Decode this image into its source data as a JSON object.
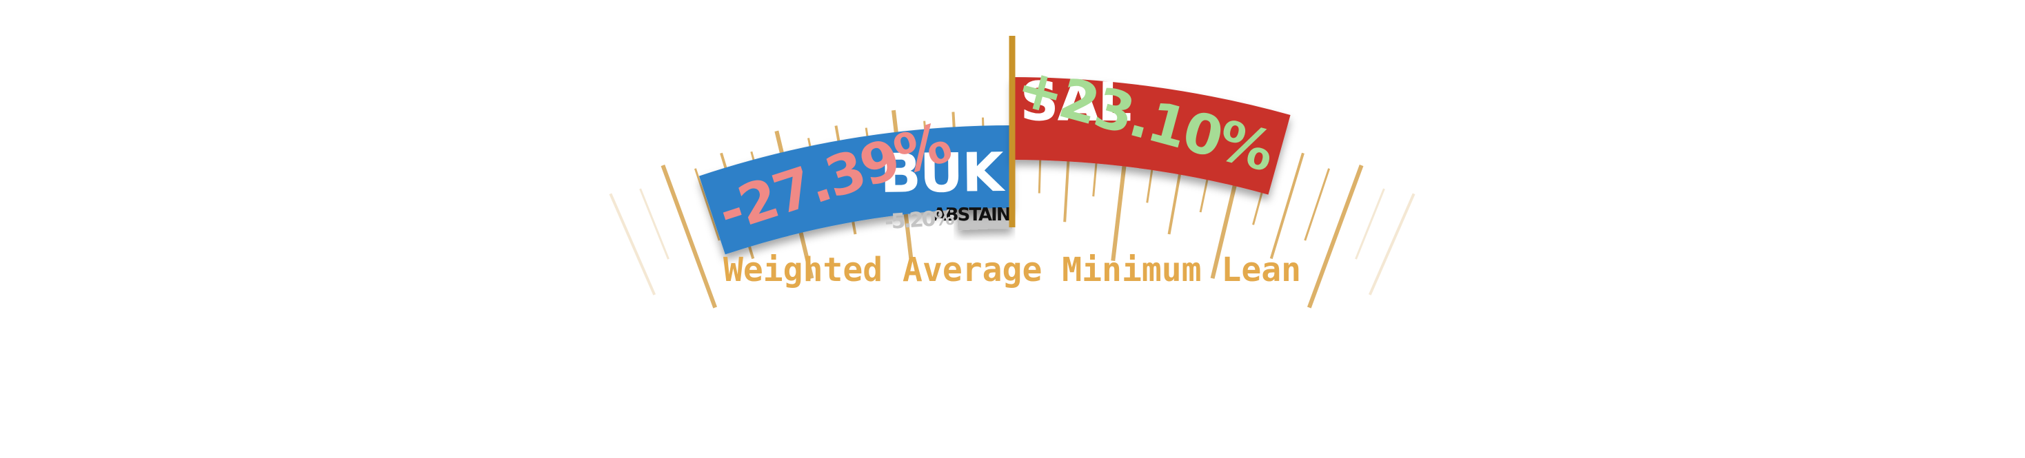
{
  "chart_data": {
    "type": "bar",
    "title": "Weighted Average Minimum Lean",
    "series": [
      {
        "name": "BUK",
        "value": -27.39,
        "label": "-27.39%",
        "color": "#2e80c8",
        "label_color": "#f08a86"
      },
      {
        "name": "SAL",
        "value": 23.1,
        "label": "+23.10%",
        "color": "#c9302c",
        "label_color": "#a6dc95"
      },
      {
        "name": "ABSTAIN",
        "value": -5.2,
        "label": "-5.20%",
        "color": "#c4c4c4",
        "label_color": "#c4c4c4"
      }
    ],
    "center_value": 0,
    "range": [
      -40,
      40
    ]
  },
  "colors": {
    "center_line": "#c8932a",
    "tick_strong": "#d6a34f",
    "tick_faint": "#ecd9b8",
    "title": "#e3a94c"
  }
}
